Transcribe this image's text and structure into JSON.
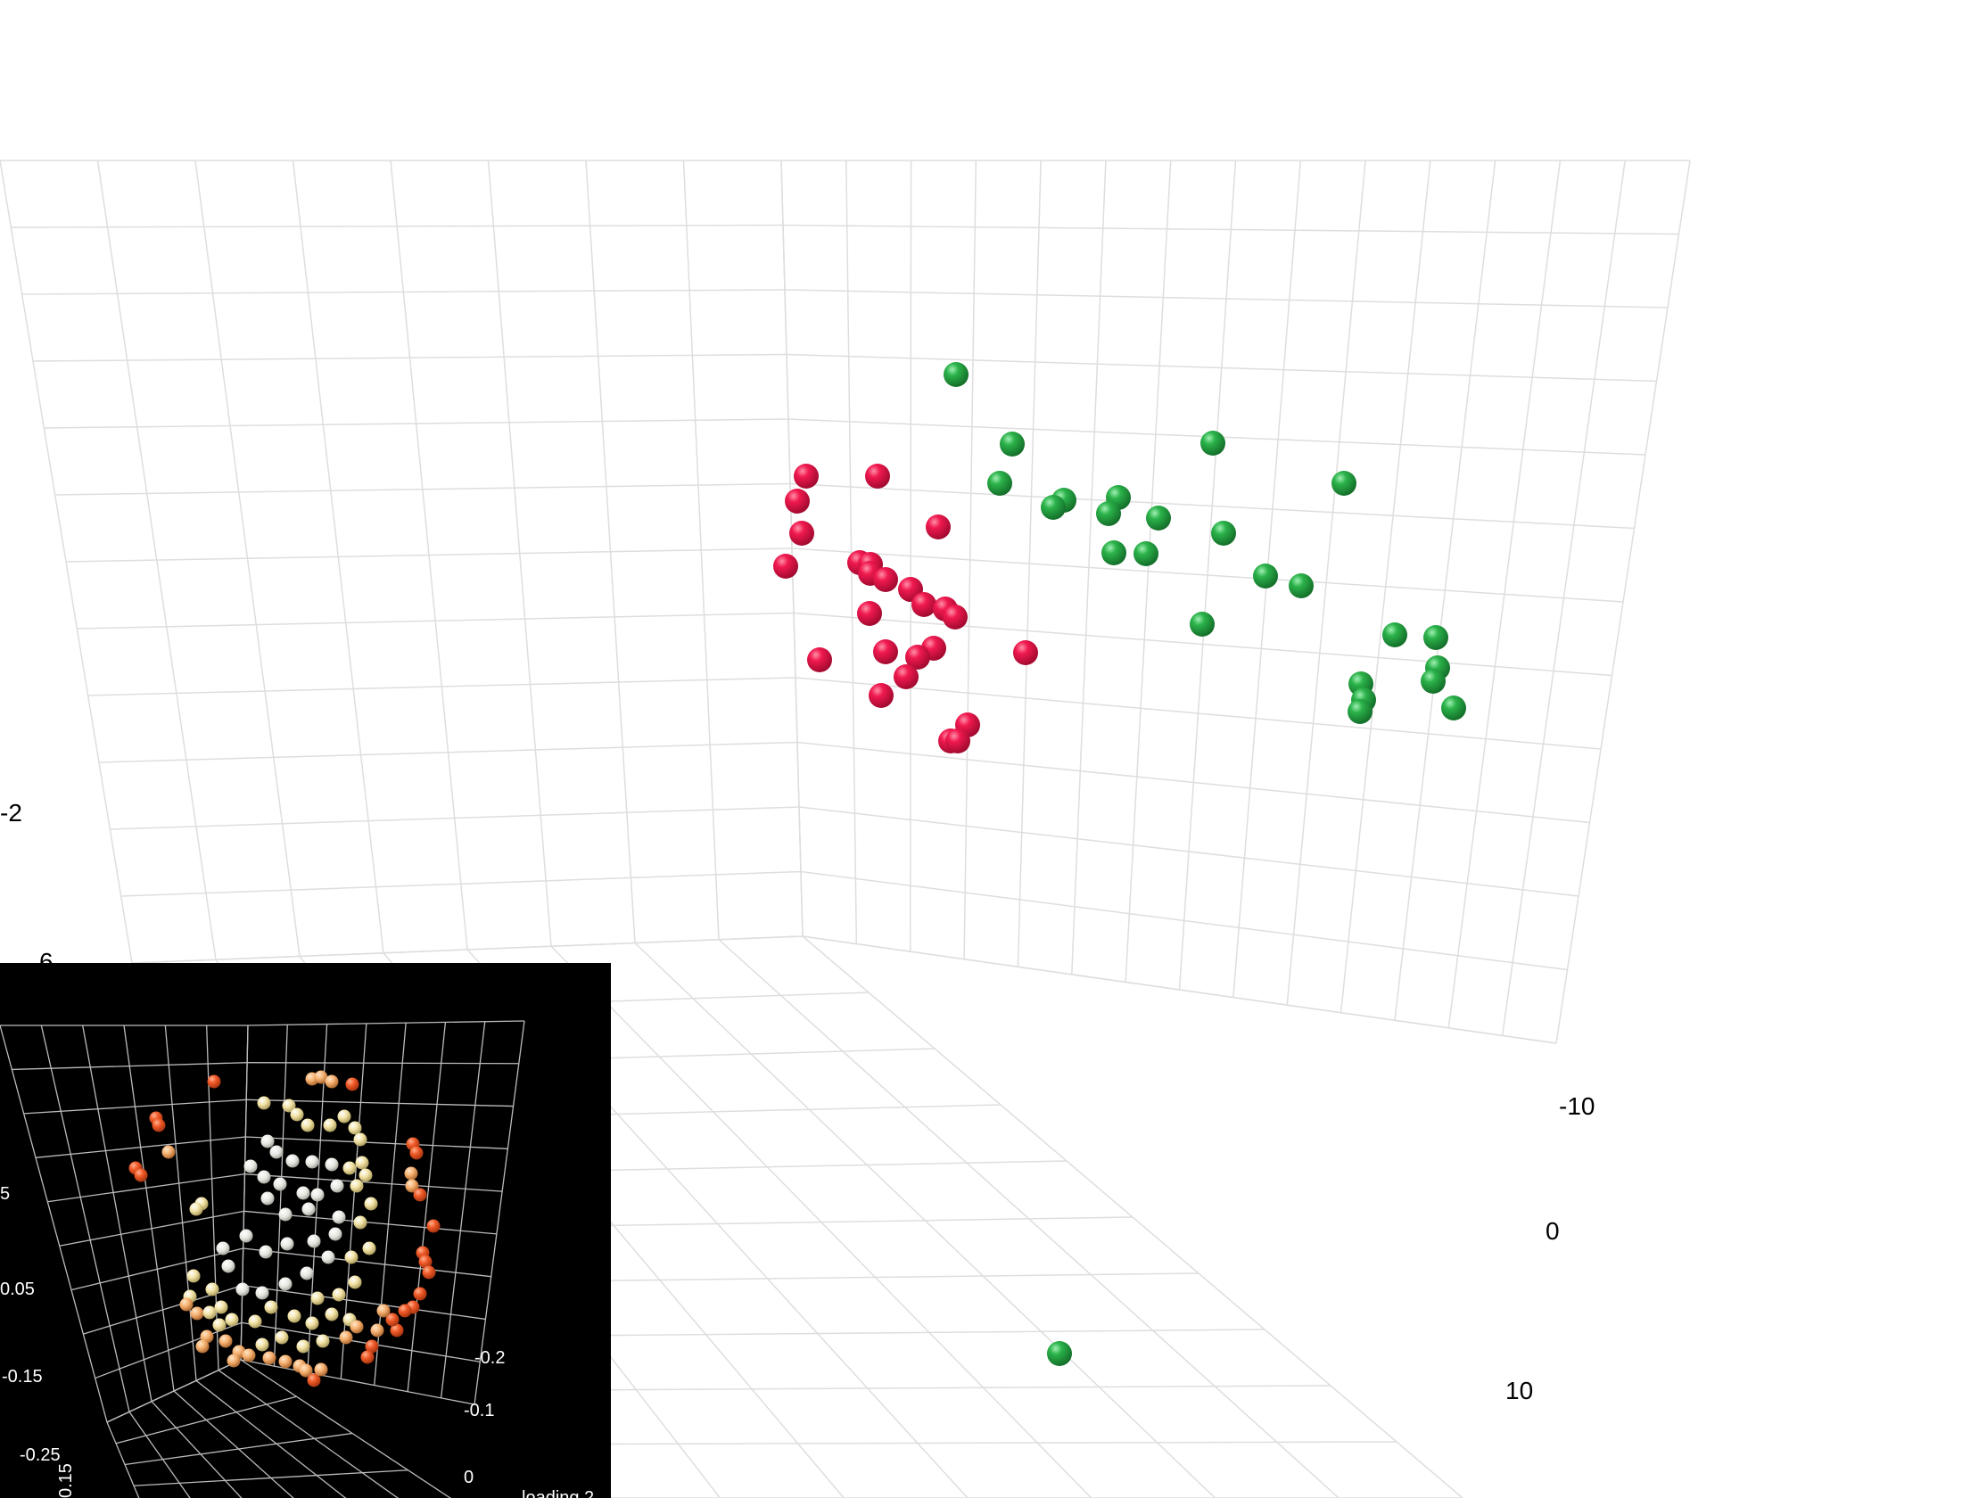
{
  "chart_data": [
    {
      "type": "scatter3d",
      "theme": "light",
      "axis_ticks": {
        "z_left": [
          "-2",
          "6"
        ],
        "y_right": [
          "-10",
          "0",
          "10"
        ]
      },
      "colors": {
        "cluster_a": "#e8164c",
        "cluster_b": "#27a844",
        "grid": "#dddddd"
      },
      "series": [
        {
          "name": "cluster_a",
          "points": [
            [
              904,
              534
            ],
            [
              984,
              534
            ],
            [
              894,
              562
            ],
            [
              899,
              598
            ],
            [
              881,
              635
            ],
            [
              1052,
              591
            ],
            [
              964,
              631
            ],
            [
              976,
              633
            ],
            [
              976,
              643
            ],
            [
              993,
              650
            ],
            [
              1021,
              661
            ],
            [
              1036,
              678
            ],
            [
              1060,
              683
            ],
            [
              1071,
              692
            ],
            [
              975,
              688
            ],
            [
              919,
              740
            ],
            [
              993,
              731
            ],
            [
              1047,
              727
            ],
            [
              1029,
              737
            ],
            [
              1016,
              759
            ],
            [
              988,
              780
            ],
            [
              1150,
              732
            ],
            [
              1085,
              813
            ],
            [
              1066,
              831
            ],
            [
              1074,
              831
            ]
          ]
        },
        {
          "name": "cluster_b",
          "points": [
            [
              1072,
              420
            ],
            [
              1135,
              498
            ],
            [
              1360,
              497
            ],
            [
              1121,
              542
            ],
            [
              1507,
              542
            ],
            [
              1193,
              561
            ],
            [
              1181,
              569
            ],
            [
              1254,
              558
            ],
            [
              1243,
              576
            ],
            [
              1299,
              581
            ],
            [
              1372,
              598
            ],
            [
              1249,
              620
            ],
            [
              1285,
              621
            ],
            [
              1419,
              646
            ],
            [
              1459,
              657
            ],
            [
              1348,
              700
            ],
            [
              1564,
              712
            ],
            [
              1610,
              715
            ],
            [
              1612,
              749
            ],
            [
              1607,
              764
            ],
            [
              1526,
              767
            ],
            [
              1529,
              785
            ],
            [
              1525,
              798
            ],
            [
              1630,
              794
            ],
            [
              1188,
              1518
            ]
          ]
        }
      ]
    },
    {
      "type": "scatter3d",
      "theme": "dark",
      "axis_ticks": {
        "z_left": [
          "5",
          "0.05",
          "-0.15",
          "-0.25"
        ],
        "y_right": [
          "-0.2",
          "-0.1",
          "0"
        ],
        "x_bottom": [
          "0.15"
        ]
      },
      "axis_label_fragment": "loading 2",
      "colors": {
        "grid": "#bbbbbb",
        "low": "#ffffff",
        "mid": "#f2e3a6",
        "high": "#f05a28"
      },
      "point_count": 240,
      "points_sample": [
        [
          350,
          1210
        ],
        [
          360,
          1208
        ],
        [
          372,
          1213
        ],
        [
          395,
          1216
        ],
        [
          240,
          1213
        ],
        [
          175,
          1254
        ],
        [
          178,
          1262
        ],
        [
          189,
          1292
        ],
        [
          152,
          1310
        ],
        [
          158,
          1318
        ],
        [
          463,
          1283
        ],
        [
          467,
          1293
        ],
        [
          461,
          1316
        ],
        [
          462,
          1330
        ],
        [
          471,
          1340
        ],
        [
          486,
          1375
        ],
        [
          474,
          1405
        ],
        [
          477,
          1415
        ],
        [
          481,
          1427
        ],
        [
          471,
          1451
        ],
        [
          463,
          1466
        ],
        [
          217,
          1431
        ],
        [
          213,
          1454
        ],
        [
          209,
          1463
        ],
        [
          221,
          1473
        ],
        [
          235,
          1472
        ],
        [
          232,
          1499
        ],
        [
          227,
          1510
        ],
        [
          253,
          1504
        ],
        [
          268,
          1516
        ],
        [
          262,
          1526
        ],
        [
          279,
          1520
        ],
        [
          302,
          1523
        ],
        [
          320,
          1527
        ],
        [
          336,
          1532
        ],
        [
          343,
          1537
        ],
        [
          352,
          1548
        ],
        [
          360,
          1536
        ],
        [
          423,
          1492
        ],
        [
          445,
          1492
        ],
        [
          440,
          1480
        ],
        [
          454,
          1470
        ],
        [
          430,
          1470
        ],
        [
          417,
          1510
        ],
        [
          412,
          1522
        ],
        [
          296,
          1237
        ],
        [
          324,
          1240
        ],
        [
          333,
          1250
        ],
        [
          345,
          1262
        ],
        [
          370,
          1262
        ],
        [
          386,
          1252
        ],
        [
          398,
          1265
        ],
        [
          404,
          1278
        ],
        [
          300,
          1280
        ],
        [
          310,
          1292
        ],
        [
          328,
          1302
        ],
        [
          350,
          1303
        ],
        [
          372,
          1306
        ],
        [
          392,
          1310
        ],
        [
          406,
          1304
        ],
        [
          281,
          1308
        ],
        [
          296,
          1320
        ],
        [
          314,
          1328
        ],
        [
          340,
          1338
        ],
        [
          356,
          1340
        ],
        [
          378,
          1330
        ],
        [
          400,
          1330
        ],
        [
          410,
          1318
        ],
        [
          416,
          1350
        ],
        [
          300,
          1344
        ],
        [
          320,
          1362
        ],
        [
          346,
          1356
        ],
        [
          380,
          1365
        ],
        [
          404,
          1371
        ],
        [
          276,
          1386
        ],
        [
          298,
          1404
        ],
        [
          322,
          1395
        ],
        [
          352,
          1392
        ],
        [
          376,
          1384
        ],
        [
          368,
          1410
        ],
        [
          394,
          1410
        ],
        [
          414,
          1400
        ],
        [
          250,
          1400
        ],
        [
          226,
          1350
        ],
        [
          220,
          1356
        ],
        [
          256,
          1420
        ],
        [
          272,
          1446
        ],
        [
          294,
          1450
        ],
        [
          320,
          1440
        ],
        [
          344,
          1428
        ],
        [
          356,
          1456
        ],
        [
          380,
          1452
        ],
        [
          398,
          1438
        ],
        [
          260,
          1480
        ],
        [
          286,
          1482
        ],
        [
          304,
          1466
        ],
        [
          330,
          1476
        ],
        [
          350,
          1484
        ],
        [
          372,
          1474
        ],
        [
          392,
          1480
        ],
        [
          238,
          1446
        ],
        [
          246,
          1486
        ],
        [
          248,
          1466
        ],
        [
          294,
          1508
        ],
        [
          316,
          1500
        ],
        [
          340,
          1510
        ],
        [
          362,
          1504
        ],
        [
          388,
          1500
        ],
        [
          400,
          1488
        ]
      ]
    }
  ]
}
